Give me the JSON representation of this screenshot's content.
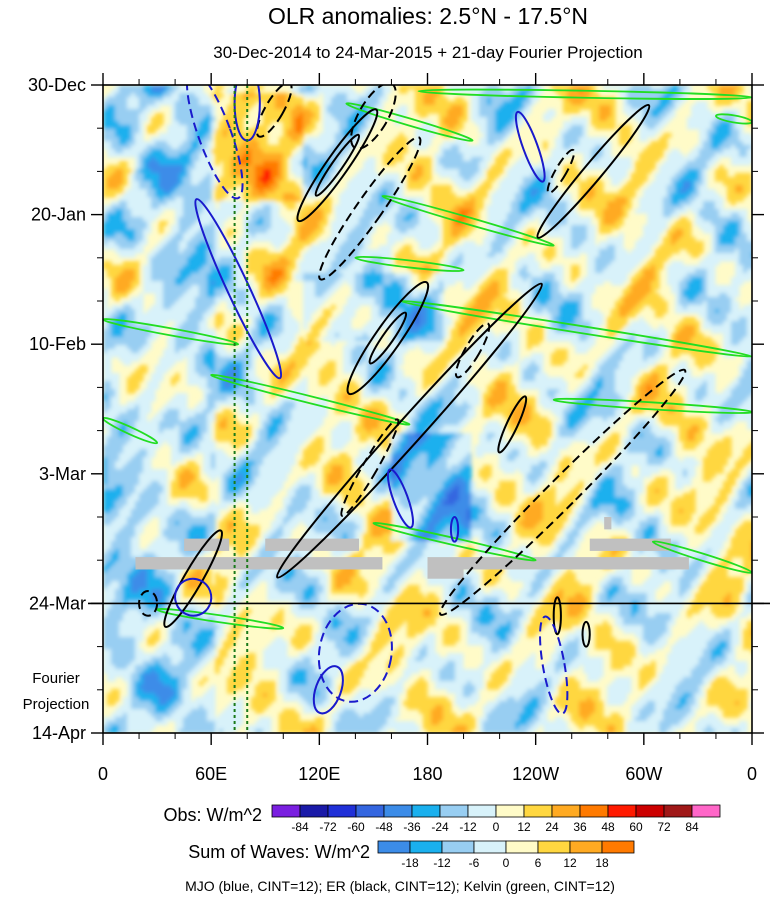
{
  "chart_data": {
    "type": "heatmap",
    "title": "OLR anomalies: 2.5°N - 17.5°N",
    "subtitle": "30-Dec-2014 to 24-Mar-2015 + 21-day Fourier Projection",
    "x_ticks": [
      "0",
      "60E",
      "120E",
      "180",
      "120W",
      "60W",
      "0"
    ],
    "x_tick_values": [
      0,
      60,
      120,
      180,
      240,
      300,
      360
    ],
    "xlim": [
      0,
      360
    ],
    "y_ticks": [
      "30-Dec",
      "20-Jan",
      "10-Feb",
      "3-Mar",
      "24-Mar",
      "14-Apr"
    ],
    "y_tick_days": [
      0,
      21,
      42,
      63,
      84,
      105
    ],
    "ylim_days": [
      0,
      105
    ],
    "projection_start_day": 84,
    "projection_label": [
      "Fourier",
      "Projection"
    ],
    "obs_colorbar": {
      "label": "Obs: W/m^2",
      "levels": [
        "-84",
        "-72",
        "-60",
        "-48",
        "-36",
        "-24",
        "-12",
        "0",
        "12",
        "24",
        "36",
        "48",
        "60",
        "72",
        "84"
      ],
      "colors": [
        "#7a1fe0",
        "#1a1aa8",
        "#2030d8",
        "#3466e0",
        "#3c8ce8",
        "#1ab0ee",
        "#98cef2",
        "#d8f2fa",
        "#fffbc8",
        "#ffd740",
        "#ffaa22",
        "#ff7a00",
        "#ff1a00",
        "#cc0000",
        "#a01818",
        "#ff66c8"
      ]
    },
    "waves_colorbar": {
      "label": "Sum of Waves: W/m^2",
      "levels": [
        "-18",
        "-12",
        "-6",
        "0",
        "6",
        "12",
        "18"
      ],
      "colors": [
        "#3c8ce8",
        "#1ab0ee",
        "#98cef2",
        "#d8f2fa",
        "#fffbc8",
        "#ffd740",
        "#ffaa22",
        "#ff7a00"
      ]
    },
    "footnote": "MJO (blue, CINT=12); ER (black, CINT=12); Kelvin (green, CINT=12)",
    "series": [
      {
        "wave": "MJO",
        "color": "#1a1acc",
        "contours": [
          {
            "lon": 62,
            "day": 8,
            "rx": 9,
            "ry": 11,
            "rot": -20,
            "dash": true
          },
          {
            "lon": 80,
            "day": 3,
            "rx": 7,
            "ry": 6,
            "rot": 0,
            "dash": false
          },
          {
            "lon": 75,
            "day": 33,
            "rx": 6,
            "ry": 16,
            "rot": -25,
            "dash": false
          },
          {
            "lon": 165,
            "day": 67,
            "rx": 4,
            "ry": 5,
            "rot": -20,
            "dash": false
          },
          {
            "lon": 237,
            "day": 10,
            "rx": 4,
            "ry": 6,
            "rot": -20,
            "dash": false
          },
          {
            "lon": 250,
            "day": 94,
            "rx": 6,
            "ry": 8,
            "rot": -10,
            "dash": true
          },
          {
            "lon": 140,
            "day": 92,
            "rx": 20,
            "ry": 8,
            "rot": 10,
            "dash": true
          },
          {
            "lon": 125,
            "day": 98,
            "rx": 7,
            "ry": 4,
            "rot": 20,
            "dash": false
          },
          {
            "lon": 50,
            "day": 83,
            "rx": 10,
            "ry": 3,
            "rot": -20,
            "dash": false
          },
          {
            "lon": 195,
            "day": 72,
            "rx": 2,
            "ry": 2,
            "rot": 0,
            "dash": false
          }
        ]
      },
      {
        "wave": "ER",
        "color": "#000000",
        "contours": [
          {
            "lon": 130,
            "day": 13,
            "rx": 6,
            "ry": 11,
            "rot": 35,
            "dash": false
          },
          {
            "lon": 130,
            "day": 13,
            "rx": 3,
            "ry": 6,
            "rot": 35,
            "dash": false
          },
          {
            "lon": 148,
            "day": 20,
            "rx": 7,
            "ry": 14,
            "rot": 35,
            "dash": true
          },
          {
            "lon": 158,
            "day": 41,
            "rx": 7,
            "ry": 11,
            "rot": 35,
            "dash": false
          },
          {
            "lon": 158,
            "day": 41,
            "rx": 3,
            "ry": 5,
            "rot": 35,
            "dash": false
          },
          {
            "lon": 205,
            "day": 43,
            "rx": 4,
            "ry": 5,
            "rot": 30,
            "dash": true
          },
          {
            "lon": 170,
            "day": 56,
            "rx": 7,
            "ry": 32,
            "rot": 42,
            "dash": false
          },
          {
            "lon": 227,
            "day": 55,
            "rx": 3,
            "ry": 5,
            "rot": 25,
            "dash": false
          },
          {
            "lon": 272,
            "day": 14,
            "rx": 5,
            "ry": 14,
            "rot": 40,
            "dash": false
          },
          {
            "lon": 254,
            "day": 14,
            "rx": 3,
            "ry": 4,
            "rot": 30,
            "dash": true
          },
          {
            "lon": 148,
            "day": 62,
            "rx": 4,
            "ry": 9,
            "rot": 30,
            "dash": true
          },
          {
            "lon": 255,
            "day": 66,
            "rx": 8,
            "ry": 28,
            "rot": 45,
            "dash": true
          },
          {
            "lon": 50,
            "day": 80,
            "rx": 5,
            "ry": 9,
            "rot": 30,
            "dash": false
          },
          {
            "lon": 252,
            "day": 86,
            "rx": 2,
            "ry": 3,
            "rot": 0,
            "dash": false
          },
          {
            "lon": 268,
            "day": 89,
            "rx": 2,
            "ry": 2,
            "rot": 0,
            "dash": false
          },
          {
            "lon": 25,
            "day": 84,
            "rx": 5,
            "ry": 2,
            "rot": 0,
            "dash": true
          },
          {
            "lon": 150,
            "day": 5,
            "rx": 8,
            "ry": 6,
            "rot": 30,
            "dash": true
          },
          {
            "lon": 95,
            "day": 4,
            "rx": 5,
            "ry": 5,
            "rot": 30,
            "dash": true
          }
        ]
      },
      {
        "wave": "Kelvin",
        "color": "#22dd22",
        "bands": [
          {
            "lon1": 135,
            "day1": 3,
            "lon2": 205,
            "day2": 9
          },
          {
            "lon1": 175,
            "day1": 1,
            "lon2": 360,
            "day2": 2
          },
          {
            "lon1": 155,
            "day1": 18,
            "lon2": 250,
            "day2": 26
          },
          {
            "lon1": 165,
            "day1": 35,
            "lon2": 360,
            "day2": 44
          },
          {
            "lon1": 0,
            "day1": 38,
            "lon2": 75,
            "day2": 42
          },
          {
            "lon1": 140,
            "day1": 28,
            "lon2": 200,
            "day2": 30
          },
          {
            "lon1": 60,
            "day1": 47,
            "lon2": 170,
            "day2": 55
          },
          {
            "lon1": 250,
            "day1": 51,
            "lon2": 360,
            "day2": 53
          },
          {
            "lon1": 0,
            "day1": 54,
            "lon2": 30,
            "day2": 58
          },
          {
            "lon1": 150,
            "day1": 71,
            "lon2": 240,
            "day2": 77
          },
          {
            "lon1": 305,
            "day1": 74,
            "lon2": 360,
            "day2": 79
          },
          {
            "lon1": 30,
            "day1": 85,
            "lon2": 100,
            "day2": 88
          },
          {
            "lon1": 340,
            "day1": 5,
            "lon2": 360,
            "day2": 6
          }
        ]
      }
    ],
    "missing_bars": [
      {
        "lon1": 45,
        "lon2": 70,
        "day1": 73.5,
        "day2": 75.5
      },
      {
        "lon1": 90,
        "lon2": 142,
        "day1": 73.5,
        "day2": 75.5
      },
      {
        "lon1": 18,
        "lon2": 155,
        "day1": 76.5,
        "day2": 78.5
      },
      {
        "lon1": 180,
        "lon2": 325,
        "day1": 76.5,
        "day2": 78.5
      },
      {
        "lon1": 270,
        "lon2": 315,
        "day1": 73.5,
        "day2": 75.5
      },
      {
        "lon1": 278,
        "lon2": 282,
        "day1": 70,
        "day2": 72
      },
      {
        "lon1": 180,
        "lon2": 200,
        "day1": 77,
        "day2": 80
      }
    ],
    "vertical_lines_lon": [
      73,
      80
    ]
  }
}
